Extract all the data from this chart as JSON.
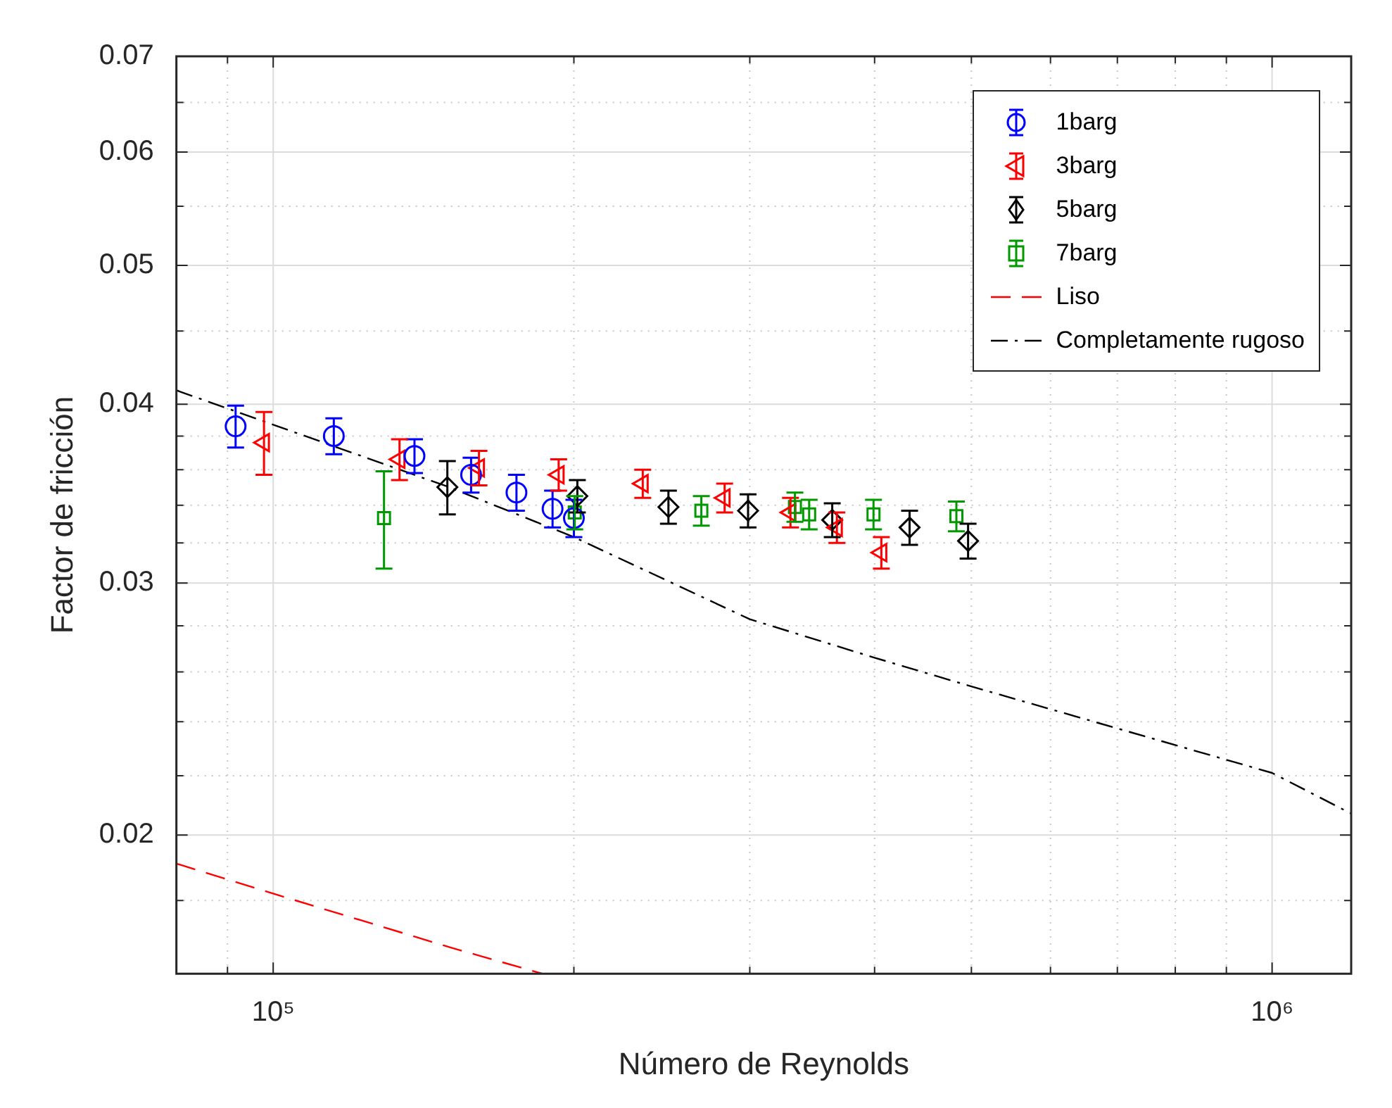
{
  "chart_data": {
    "type": "scatter",
    "xlabel": "Número de Reynolds",
    "ylabel": "Factor de fricción",
    "log": "xy",
    "grid": true,
    "legend": "top right",
    "xlim": [
      80000,
      1200000
    ],
    "ylim": [
      0.016,
      0.07
    ],
    "xticks": [
      {
        "value": 90000,
        "label": null
      },
      {
        "value": 100000,
        "label": "10⁵"
      },
      {
        "value": 200000,
        "label": null
      },
      {
        "value": 300000,
        "label": null
      },
      {
        "value": 400000,
        "label": null
      },
      {
        "value": 500000,
        "label": null
      },
      {
        "value": 600000,
        "label": null
      },
      {
        "value": 700000,
        "label": null
      },
      {
        "value": 800000,
        "label": null
      },
      {
        "value": 900000,
        "label": null
      },
      {
        "value": 1000000,
        "label": "10⁶"
      }
    ],
    "yticks": [
      {
        "value": 0.018,
        "label": null
      },
      0.02,
      {
        "value": 0.022,
        "label": null
      },
      {
        "value": 0.024,
        "label": null
      },
      {
        "value": 0.026,
        "label": null
      },
      {
        "value": 0.028,
        "label": null
      },
      0.03,
      {
        "value": 0.032,
        "label": null
      },
      {
        "value": 0.034,
        "label": null
      },
      {
        "value": 0.036,
        "label": null
      },
      {
        "value": 0.038,
        "label": null
      },
      0.04,
      {
        "value": 0.045,
        "label": null
      },
      0.05,
      {
        "value": 0.055,
        "label": null
      },
      0.06,
      {
        "value": 0.065,
        "label": null
      },
      0.07
    ],
    "series": [
      {
        "name": "1barg",
        "type": "scatter",
        "marker": "circle",
        "color": "#0000ff",
        "x": [
          91700,
          115000,
          138500,
          157800,
          175200,
          190400,
          200000
        ],
        "values": [
          0.0386,
          0.038,
          0.0368,
          0.0357,
          0.0347,
          0.0338,
          0.0333
        ],
        "errors": [
          0.0013,
          0.0011,
          0.001,
          0.001,
          0.001,
          0.001,
          0.001
        ]
      },
      {
        "name": "3barg",
        "type": "scatter",
        "marker": "triangle",
        "color": "#ff0000",
        "x": [
          97900,
          133800,
          160700,
          193100,
          234400,
          283100,
          329500,
          366700,
          406300
        ],
        "values": [
          0.0376,
          0.0366,
          0.0361,
          0.0357,
          0.0352,
          0.0344,
          0.0336,
          0.0328,
          0.0315
        ],
        "errors": [
          0.0019,
          0.0012,
          0.001,
          0.0009,
          0.0008,
          0.0008,
          0.0008,
          0.0008,
          0.0008
        ]
      },
      {
        "name": "5barg",
        "type": "scatter",
        "marker": "diamond",
        "color": "#000000",
        "x": [
          149400,
          201600,
          248700,
          298800,
          362800,
          433600,
          496200
        ],
        "values": [
          0.035,
          0.0345,
          0.0339,
          0.0337,
          0.0332,
          0.0328,
          0.0321
        ],
        "errors": [
          0.0015,
          0.0009,
          0.0009,
          0.0009,
          0.0009,
          0.0009,
          0.0009
        ]
      },
      {
        "name": "7barg",
        "type": "scatter",
        "marker": "square",
        "color": "#009900",
        "x": [
          129100,
          200400,
          268300,
          332900,
          344000,
          399000,
          483000
        ],
        "values": [
          0.0333,
          0.0336,
          0.0337,
          0.0339,
          0.0335,
          0.0335,
          0.0334
        ],
        "errors": [
          0.0026,
          0.0009,
          0.0008,
          0.0008,
          0.0008,
          0.0008,
          0.0008
        ]
      },
      {
        "name": "Liso",
        "type": "line",
        "line_style": "dashed",
        "color": "#ff0000",
        "x": [
          80000,
          100000,
          150000,
          186000
        ],
        "values": [
          0.0191,
          0.0182,
          0.0167,
          0.016
        ]
      },
      {
        "name": "Completamente rugoso",
        "type": "line",
        "line_style": "dashdot",
        "color": "#000000",
        "x": [
          80000,
          100000,
          150000,
          200000,
          300000,
          400000,
          500000,
          1000000,
          1200000
        ],
        "values": [
          0.0409,
          0.0387,
          0.035,
          0.0323,
          0.0283,
          0.0266,
          0.0254,
          0.0221,
          0.0207
        ]
      }
    ]
  }
}
